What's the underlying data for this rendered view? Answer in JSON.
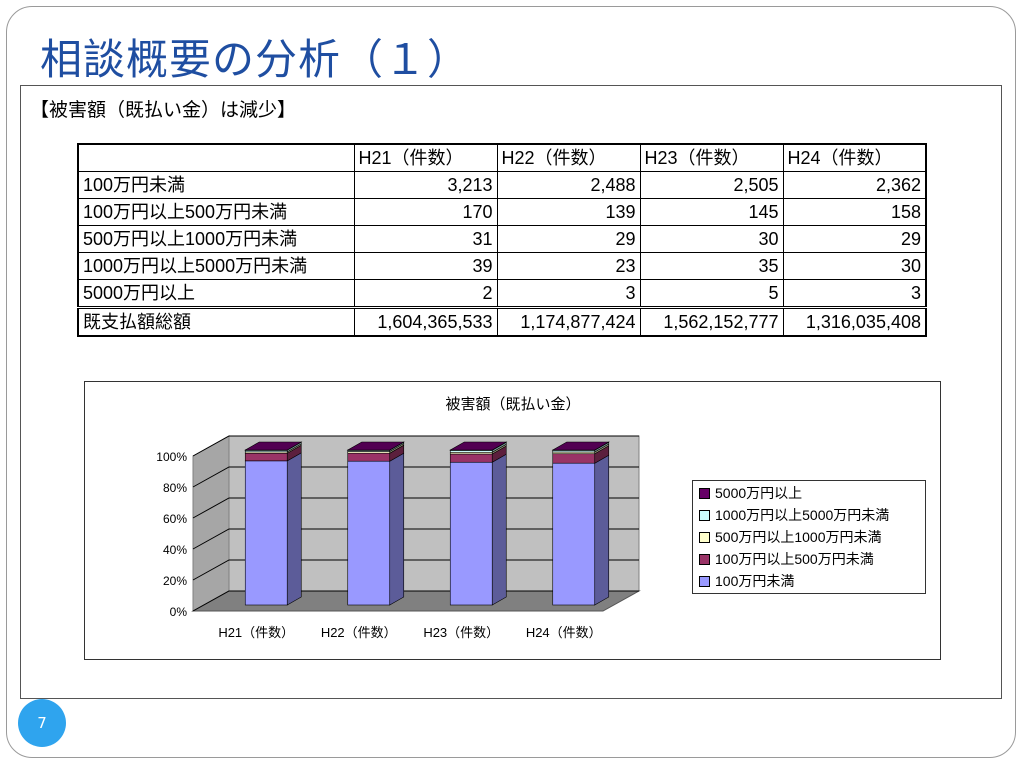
{
  "slide": {
    "title": "相談概要の分析（１）",
    "subheading": "【被害額（既払い金）は減少】",
    "page_number": "7"
  },
  "table": {
    "headers": [
      "",
      "H21（件数）",
      "H22（件数）",
      "H23（件数）",
      "H24（件数）"
    ],
    "rows": [
      {
        "label": "100万円未満",
        "values": [
          "3,213",
          "2,488",
          "2,505",
          "2,362"
        ]
      },
      {
        "label": "100万円以上500万円未満",
        "values": [
          "170",
          "139",
          "145",
          "158"
        ]
      },
      {
        "label": "500万円以上1000万円未満",
        "values": [
          "31",
          "29",
          "30",
          "29"
        ]
      },
      {
        "label": "1000万円以上5000万円未満",
        "values": [
          "39",
          "23",
          "35",
          "30"
        ]
      },
      {
        "label": "5000万円以上",
        "values": [
          "2",
          "3",
          "5",
          "3"
        ]
      }
    ],
    "total": {
      "label": "既支払額総額",
      "values": [
        "1,604,365,533",
        "1,174,877,424",
        "1,562,152,777",
        "1,316,035,408"
      ]
    }
  },
  "chart_data": {
    "type": "bar",
    "stacked": "percent",
    "three_d": true,
    "title": "被害額（既払い金）",
    "categories": [
      "H21（件数）",
      "H22（件数）",
      "H23（件数）",
      "H24（件数）"
    ],
    "y_ticks": [
      "0%",
      "20%",
      "40%",
      "60%",
      "80%",
      "100%"
    ],
    "ylim": [
      0,
      100
    ],
    "grid": true,
    "legend_position": "right",
    "series": [
      {
        "name": "100万円未満",
        "values": [
          3213,
          2488,
          2505,
          2362
        ],
        "color": "#9999ff"
      },
      {
        "name": "100万円以上500万円未満",
        "values": [
          170,
          139,
          145,
          158
        ],
        "color": "#993366"
      },
      {
        "name": "500万円以上1000万円未満",
        "values": [
          31,
          29,
          30,
          29
        ],
        "color": "#ffffcc"
      },
      {
        "name": "1000万円以上5000万円未満",
        "values": [
          39,
          23,
          35,
          30
        ],
        "color": "#ccffff"
      },
      {
        "name": "5000万円以上",
        "values": [
          2,
          3,
          5,
          3
        ],
        "color": "#660066"
      }
    ],
    "legend_order": [
      "5000万円以上",
      "1000万円以上5000万円未満",
      "500万円以上1000万円未満",
      "100万円以上500万円未満",
      "100万円未満"
    ]
  },
  "colors": {
    "title": "#1f4ea1",
    "page_badge": "#2fa4ee",
    "chart_wall": "#c0c0c0",
    "chart_floor": "#808080"
  }
}
